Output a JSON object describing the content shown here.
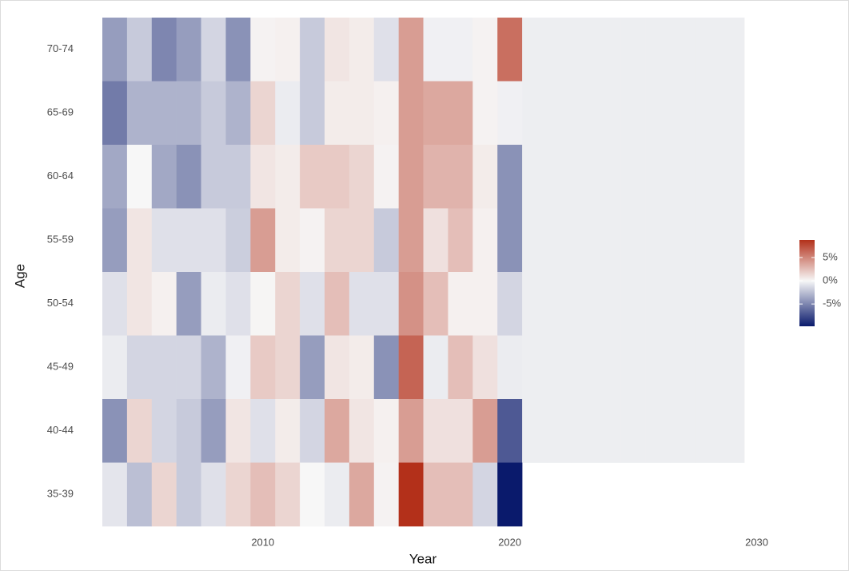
{
  "chart_data": {
    "type": "heatmap",
    "x_label": "Year",
    "y_label": "Age",
    "x": [
      2004,
      2005,
      2006,
      2007,
      2008,
      2009,
      2010,
      2011,
      2012,
      2013,
      2014,
      2015,
      2016,
      2017,
      2018,
      2019,
      2020,
      2021,
      2022,
      2023,
      2024,
      2025,
      2026,
      2027,
      2028,
      2029
    ],
    "categories": [
      "70-74",
      "65-69",
      "60-64",
      "55-59",
      "50-54",
      "45-49",
      "40-44",
      "35-39"
    ],
    "z": [
      [
        -4,
        -2,
        -5,
        -4,
        -1.5,
        -4.5,
        0.2,
        0.3,
        -2,
        0.8,
        0.5,
        -1,
        4,
        -0.3,
        -0.3,
        0.2,
        6,
        -0.4,
        -0.4,
        -0.4,
        -0.4,
        -0.4,
        -0.4,
        -0.4,
        -0.4,
        -0.4
      ],
      [
        -5.5,
        -3,
        -3,
        -3,
        -2,
        -3,
        1.5,
        -0.5,
        -2,
        0.5,
        0.5,
        0.3,
        4,
        3.5,
        3.5,
        0.2,
        -0.3,
        -0.4,
        -0.4,
        -0.4,
        -0.4,
        -0.4,
        -0.4,
        -0.4,
        -0.4,
        -0.4
      ],
      [
        -3.5,
        0,
        -3.5,
        -4.5,
        -2,
        -2,
        0.8,
        0.5,
        2,
        2,
        1.5,
        0.2,
        4,
        3,
        3,
        0.5,
        -4.5,
        -0.4,
        -0.4,
        -0.4,
        -0.4,
        -0.4,
        -0.4,
        -0.4,
        -0.4,
        -0.4
      ],
      [
        -4,
        0.8,
        -1,
        -1,
        -1,
        -1.8,
        4,
        0.5,
        0.2,
        1.5,
        1.5,
        -2,
        4,
        1,
        2.5,
        0.3,
        -4.5,
        -0.4,
        -0.4,
        -0.4,
        -0.4,
        -0.4,
        -0.4,
        -0.4,
        -0.4,
        -0.4
      ],
      [
        -1,
        0.8,
        0.3,
        -4,
        -0.5,
        -1,
        0.1,
        1.5,
        -1,
        2.5,
        -1,
        -1,
        4.5,
        2.5,
        0.3,
        0.3,
        -1.5,
        -0.4,
        -0.4,
        -0.4,
        -0.4,
        -0.4,
        -0.4,
        -0.4,
        -0.4,
        -0.4
      ],
      [
        -0.5,
        -1.5,
        -1.5,
        -1.5,
        -3,
        -0.3,
        2,
        1.5,
        -4,
        0.8,
        0.5,
        -4.5,
        6.5,
        -0.5,
        2.5,
        1,
        -0.5,
        -0.4,
        -0.4,
        -0.4,
        -0.4,
        -0.4,
        -0.4,
        -0.4,
        -0.4,
        -0.4
      ],
      [
        -4.5,
        1.5,
        -1.5,
        -2,
        -4,
        0.8,
        -1,
        0.5,
        -1.5,
        3.5,
        0.8,
        0.3,
        4,
        1,
        1,
        4,
        -7,
        -0.4,
        -0.4,
        -0.4,
        -0.4,
        -0.4,
        -0.4,
        -0.4,
        -0.4,
        -0.4
      ],
      [
        -0.8,
        -2.5,
        1.5,
        -2,
        -1,
        1.5,
        2.5,
        1.5,
        0,
        -0.5,
        3.5,
        0.2,
        8.8,
        2.5,
        2.5,
        -1.5,
        -9.8,
        null,
        null,
        null,
        null,
        null,
        null,
        null,
        null,
        null
      ]
    ],
    "xlim": [
      2003.5,
      2030.5
    ],
    "xticks": [
      2010,
      2020,
      2030
    ],
    "zlim": [
      -9.8,
      8.8
    ],
    "zticks": [
      {
        "value": 5,
        "label": "5%"
      },
      {
        "value": 0,
        "label": "0%"
      },
      {
        "value": -5,
        "label": "-5%"
      }
    ],
    "colors": {
      "low": "#0a1a6c",
      "mid": "#f7f7f7",
      "high": "#b3301a"
    },
    "grid": false
  }
}
